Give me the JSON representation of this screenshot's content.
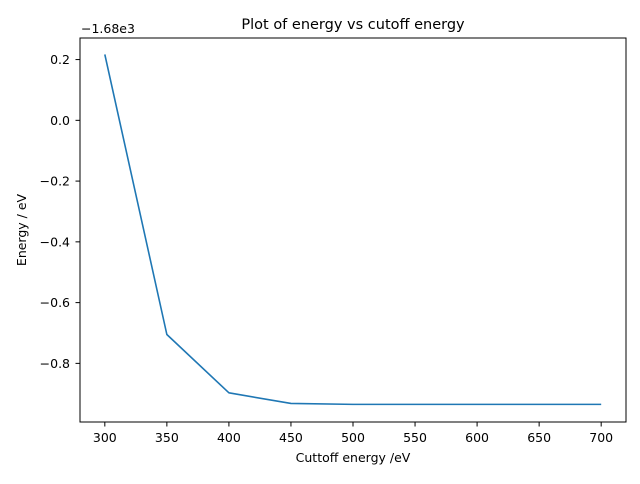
{
  "chart_data": {
    "type": "line",
    "title": "Plot of energy vs cutoff energy",
    "xlabel": "Cuttoff energy /eV",
    "ylabel": "Energy / eV",
    "y_offset_label": "−1.68e3",
    "x": [
      300,
      350,
      400,
      450,
      500,
      550,
      600,
      650,
      700
    ],
    "series": [
      {
        "values": [
          0.217,
          -0.705,
          -0.897,
          -0.932,
          -0.935,
          -0.935,
          -0.935,
          -0.935,
          -0.935
        ],
        "color": "#1f77b4"
      }
    ],
    "xlim": [
      280,
      720
    ],
    "ylim": [
      -0.993,
      0.271
    ],
    "xticks": [
      300,
      350,
      400,
      450,
      500,
      550,
      600,
      650,
      700
    ],
    "xtick_labels": [
      "300",
      "350",
      "400",
      "450",
      "500",
      "550",
      "600",
      "650",
      "700"
    ],
    "yticks": [
      0.2,
      0.0,
      -0.2,
      -0.4,
      -0.6,
      -0.8
    ],
    "ytick_labels": [
      "0.2",
      "0.0",
      "−0.2",
      "−0.4",
      "−0.6",
      "−0.8"
    ],
    "grid": false,
    "legend": false
  }
}
